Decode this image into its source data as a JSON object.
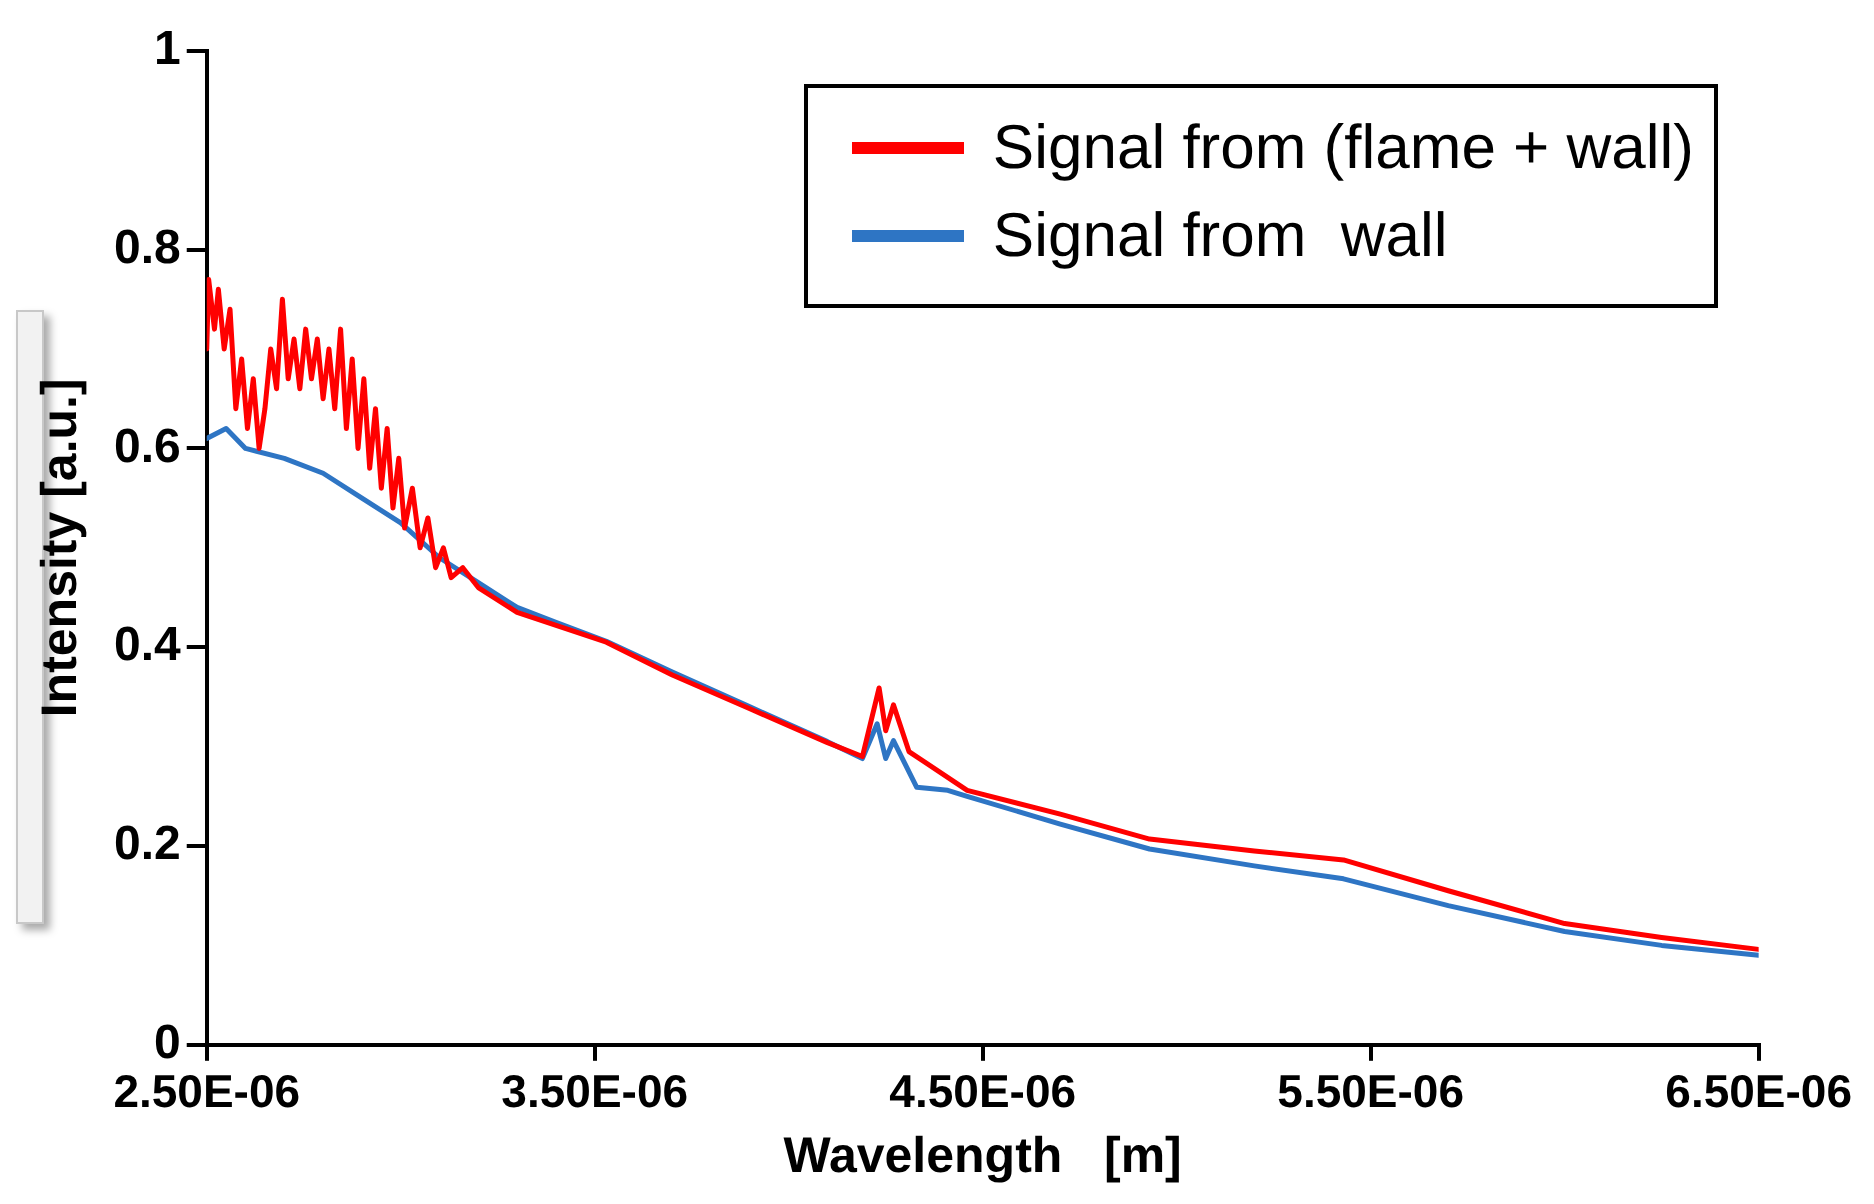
{
  "chart_data": {
    "type": "line",
    "xlabel": "Wavelength   [m]",
    "ylabel": "Intensity [a.u.]",
    "xlim": [
      2.5e-06,
      6.5e-06
    ],
    "xticks": [
      {
        "value": 2.5e-06,
        "label": "2.50E-06"
      },
      {
        "value": 3.5e-06,
        "label": "3.50E-06"
      },
      {
        "value": 4.5e-06,
        "label": "4.50E-06"
      },
      {
        "value": 5.5e-06,
        "label": "5.50E-06"
      },
      {
        "value": 6.5e-06,
        "label": "6.50E-06"
      }
    ],
    "ylim": [
      0,
      1
    ],
    "yticks": [
      0,
      0.2,
      0.4,
      0.6,
      0.8,
      1
    ],
    "grid": false,
    "legend": "top right",
    "marker": "none",
    "line_style": "solid",
    "series": [
      {
        "name": "Signal from (flame + wall)",
        "color": "#ff0000",
        "x": [
          2.5e-06,
          2.505e-06,
          2.52e-06,
          2.53e-06,
          2.545e-06,
          2.56e-06,
          2.575e-06,
          2.59e-06,
          2.605e-06,
          2.62e-06,
          2.635e-06,
          2.65e-06,
          2.665e-06,
          2.68e-06,
          2.695e-06,
          2.71e-06,
          2.725e-06,
          2.74e-06,
          2.755e-06,
          2.77e-06,
          2.785e-06,
          2.8e-06,
          2.815e-06,
          2.83e-06,
          2.845e-06,
          2.86e-06,
          2.875e-06,
          2.89e-06,
          2.905e-06,
          2.92e-06,
          2.935e-06,
          2.95e-06,
          2.965e-06,
          2.98e-06,
          2.995e-06,
          3.01e-06,
          3.03e-06,
          3.05e-06,
          3.07e-06,
          3.09e-06,
          3.11e-06,
          3.13e-06,
          3.16e-06,
          3.2e-06,
          3.3e-06,
          3.53e-06,
          3.7e-06,
          3.9e-06,
          4.1e-06,
          4.19e-06,
          4.233e-06,
          4.25e-06,
          4.27e-06,
          4.31e-06,
          4.46e-06,
          4.7e-06,
          4.93e-06,
          5.2e-06,
          5.43e-06,
          5.7e-06,
          6e-06,
          6.25e-06,
          6.5e-06
        ],
        "values": [
          0.7,
          0.77,
          0.72,
          0.76,
          0.7,
          0.74,
          0.64,
          0.69,
          0.62,
          0.67,
          0.6,
          0.64,
          0.7,
          0.66,
          0.75,
          0.67,
          0.71,
          0.66,
          0.72,
          0.67,
          0.71,
          0.65,
          0.7,
          0.64,
          0.72,
          0.62,
          0.69,
          0.6,
          0.67,
          0.58,
          0.64,
          0.56,
          0.62,
          0.54,
          0.59,
          0.52,
          0.56,
          0.5,
          0.53,
          0.48,
          0.5,
          0.47,
          0.48,
          0.46,
          0.435,
          0.405,
          0.372,
          0.338,
          0.304,
          0.29,
          0.359,
          0.316,
          0.342,
          0.295,
          0.256,
          0.232,
          0.207,
          0.195,
          0.186,
          0.155,
          0.122,
          0.108,
          0.096
        ]
      },
      {
        "name": "Signal from  wall",
        "color": "#2e75c4",
        "x": [
          2.5e-06,
          2.55e-06,
          2.6e-06,
          2.7e-06,
          2.8e-06,
          2.9e-06,
          3e-06,
          3.1e-06,
          3.2e-06,
          3.3e-06,
          3.4e-06,
          3.53e-06,
          3.7e-06,
          3.9e-06,
          4.1e-06,
          4.19e-06,
          4.228e-06,
          4.25e-06,
          4.27e-06,
          4.33e-06,
          4.41e-06,
          4.46e-06,
          4.7e-06,
          4.93e-06,
          5.2e-06,
          5.43e-06,
          5.7e-06,
          6e-06,
          6.25e-06,
          6.5e-06
        ],
        "values": [
          0.61,
          0.62,
          0.6,
          0.59,
          0.575,
          0.55,
          0.525,
          0.49,
          0.465,
          0.44,
          0.425,
          0.406,
          0.375,
          0.34,
          0.305,
          0.288,
          0.323,
          0.288,
          0.306,
          0.259,
          0.256,
          0.25,
          0.222,
          0.197,
          0.18,
          0.167,
          0.14,
          0.114,
          0.1,
          0.09
        ]
      }
    ]
  }
}
